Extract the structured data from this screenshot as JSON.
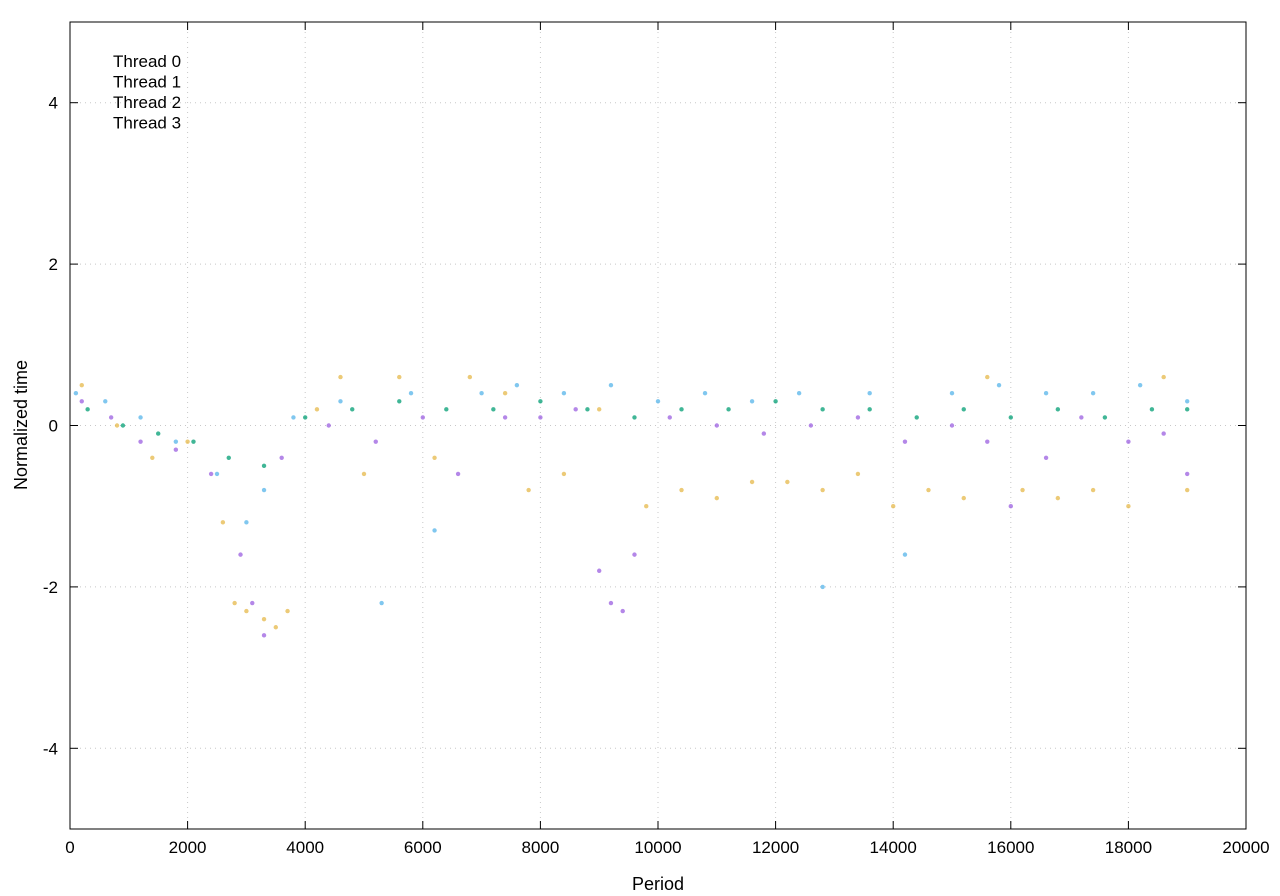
{
  "chart_data": {
    "type": "scatter",
    "title": "",
    "xlabel": "Period",
    "ylabel": "Normalized time",
    "xlim": [
      0,
      20000
    ],
    "ylim": [
      -5,
      5
    ],
    "x_ticks": [
      0,
      2000,
      4000,
      6000,
      8000,
      10000,
      12000,
      14000,
      16000,
      18000,
      20000
    ],
    "y_ticks": [
      -4,
      -2,
      0,
      2,
      4
    ],
    "x_tick_labels": [
      "0",
      "2000",
      "4000",
      "6000",
      "8000",
      "10000",
      "12000",
      "14000",
      "16000",
      "18000",
      "20000"
    ],
    "y_tick_labels": [
      "-4",
      "-2",
      "0",
      "2",
      "4"
    ],
    "grid": true,
    "legend_position": "top-left",
    "series": [
      {
        "name": "Thread 0",
        "color": "#9b5fe0",
        "points": [
          [
            200,
            0.3
          ],
          [
            700,
            0.1
          ],
          [
            1200,
            -0.2
          ],
          [
            1800,
            -0.3
          ],
          [
            2400,
            -0.6
          ],
          [
            2900,
            -1.6
          ],
          [
            3100,
            -2.2
          ],
          [
            3300,
            -2.6
          ],
          [
            3600,
            -0.4
          ],
          [
            4400,
            0.0
          ],
          [
            5200,
            -0.2
          ],
          [
            6000,
            0.1
          ],
          [
            6600,
            -0.6
          ],
          [
            7400,
            0.1
          ],
          [
            8000,
            0.1
          ],
          [
            8600,
            0.2
          ],
          [
            9000,
            -1.8
          ],
          [
            9200,
            -2.2
          ],
          [
            9400,
            -2.3
          ],
          [
            9600,
            -1.6
          ],
          [
            10200,
            0.1
          ],
          [
            11000,
            0.0
          ],
          [
            11800,
            -0.1
          ],
          [
            12600,
            0.0
          ],
          [
            13400,
            0.1
          ],
          [
            14200,
            -0.2
          ],
          [
            15000,
            0.0
          ],
          [
            15600,
            -0.2
          ],
          [
            16000,
            -1.0
          ],
          [
            16600,
            -0.4
          ],
          [
            17200,
            0.1
          ],
          [
            18000,
            -0.2
          ],
          [
            18600,
            -0.1
          ],
          [
            19000,
            -0.6
          ]
        ]
      },
      {
        "name": "Thread 1",
        "color": "#009e73",
        "points": [
          [
            300,
            0.2
          ],
          [
            900,
            0.0
          ],
          [
            1500,
            -0.1
          ],
          [
            2100,
            -0.2
          ],
          [
            2700,
            -0.4
          ],
          [
            3300,
            -0.5
          ],
          [
            4000,
            0.1
          ],
          [
            4800,
            0.2
          ],
          [
            5600,
            0.3
          ],
          [
            6400,
            0.2
          ],
          [
            7200,
            0.2
          ],
          [
            8000,
            0.3
          ],
          [
            8800,
            0.2
          ],
          [
            9600,
            0.1
          ],
          [
            10400,
            0.2
          ],
          [
            11200,
            0.2
          ],
          [
            12000,
            0.3
          ],
          [
            12800,
            0.2
          ],
          [
            13600,
            0.2
          ],
          [
            14400,
            0.1
          ],
          [
            15200,
            0.2
          ],
          [
            16000,
            0.1
          ],
          [
            16800,
            0.2
          ],
          [
            17600,
            0.1
          ],
          [
            18400,
            0.2
          ],
          [
            19000,
            0.2
          ]
        ]
      },
      {
        "name": "Thread 2",
        "color": "#56b4e9",
        "points": [
          [
            100,
            0.4
          ],
          [
            600,
            0.3
          ],
          [
            1200,
            0.1
          ],
          [
            1800,
            -0.2
          ],
          [
            2500,
            -0.6
          ],
          [
            3000,
            -1.2
          ],
          [
            3300,
            -0.8
          ],
          [
            3800,
            0.1
          ],
          [
            4600,
            0.3
          ],
          [
            5300,
            -2.2
          ],
          [
            5800,
            0.4
          ],
          [
            6200,
            -1.3
          ],
          [
            7000,
            0.4
          ],
          [
            7600,
            0.5
          ],
          [
            8400,
            0.4
          ],
          [
            9200,
            0.5
          ],
          [
            10000,
            0.3
          ],
          [
            10800,
            0.4
          ],
          [
            11600,
            0.3
          ],
          [
            12400,
            0.4
          ],
          [
            12800,
            -2.0
          ],
          [
            13600,
            0.4
          ],
          [
            14200,
            -1.6
          ],
          [
            15000,
            0.4
          ],
          [
            15800,
            0.5
          ],
          [
            16600,
            0.4
          ],
          [
            17400,
            0.4
          ],
          [
            18200,
            0.5
          ],
          [
            19000,
            0.3
          ]
        ]
      },
      {
        "name": "Thread 3",
        "color": "#e6b84a",
        "points": [
          [
            200,
            0.5
          ],
          [
            800,
            0.0
          ],
          [
            1400,
            -0.4
          ],
          [
            2000,
            -0.2
          ],
          [
            2600,
            -1.2
          ],
          [
            2800,
            -2.2
          ],
          [
            3000,
            -2.3
          ],
          [
            3300,
            -2.4
          ],
          [
            3500,
            -2.5
          ],
          [
            3700,
            -2.3
          ],
          [
            4200,
            0.2
          ],
          [
            4600,
            0.6
          ],
          [
            5000,
            -0.6
          ],
          [
            5600,
            0.6
          ],
          [
            6200,
            -0.4
          ],
          [
            6800,
            0.6
          ],
          [
            7400,
            0.4
          ],
          [
            7800,
            -0.8
          ],
          [
            8400,
            -0.6
          ],
          [
            9000,
            0.2
          ],
          [
            9800,
            -1.0
          ],
          [
            10400,
            -0.8
          ],
          [
            11000,
            -0.9
          ],
          [
            11600,
            -0.7
          ],
          [
            12200,
            -0.7
          ],
          [
            12800,
            -0.8
          ],
          [
            13400,
            -0.6
          ],
          [
            14000,
            -1.0
          ],
          [
            14600,
            -0.8
          ],
          [
            15200,
            -0.9
          ],
          [
            15600,
            0.6
          ],
          [
            16200,
            -0.8
          ],
          [
            16800,
            -0.9
          ],
          [
            17400,
            -0.8
          ],
          [
            18000,
            -1.0
          ],
          [
            18600,
            0.6
          ],
          [
            19000,
            -0.8
          ]
        ]
      }
    ]
  }
}
